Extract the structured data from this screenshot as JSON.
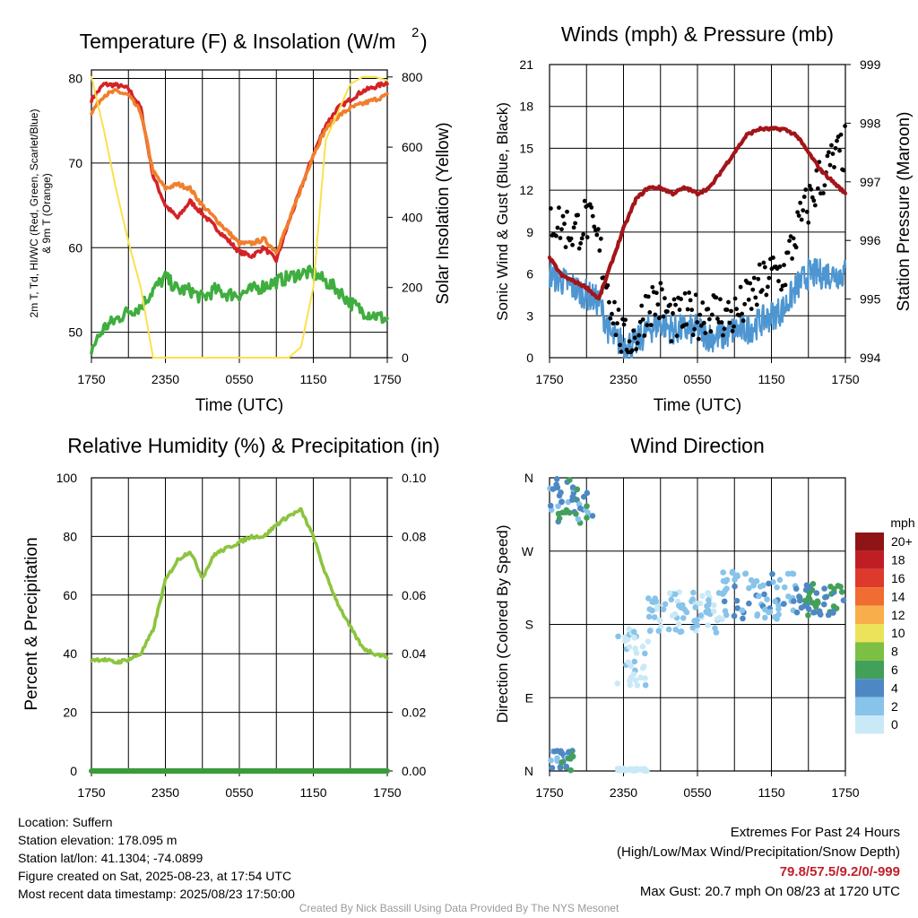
{
  "colors": {
    "red": "#d42226",
    "orange": "#f07f2d",
    "green": "#3fae3f",
    "yellow": "#fbe14a",
    "blue": "#4e96d1",
    "black": "#000000",
    "maroon": "#a3151a",
    "rh": "#8cc43f",
    "precip": "#3a9b3a"
  },
  "speed_legend": {
    "unit": "mph",
    "labels": [
      "0",
      "2",
      "4",
      "6",
      "8",
      "10",
      "12",
      "14",
      "16",
      "18",
      "20+"
    ],
    "colors": [
      "#c9e9f7",
      "#88c3ea",
      "#4e88c4",
      "#43a05a",
      "#7cbf42",
      "#ece35a",
      "#f8ae4a",
      "#ef6d31",
      "#de3a2c",
      "#be1e24",
      "#8e1416"
    ]
  },
  "x_ticks": [
    "1750",
    "2350",
    "0550",
    "1150",
    "1750"
  ],
  "chart_data": [
    {
      "type": "line",
      "title": "Temperature (F) & Insolation (W/m²)",
      "xlabel": "Time (UTC)",
      "ylabel_left": "2m T, Td, HI/WC (Red, Green, Scarlet/Blue) & 9m T (Orange)",
      "ylabel_right": "Solar Insolation (Yellow)",
      "ylim_left": [
        47,
        81
      ],
      "yticks_left": [
        50,
        60,
        70,
        80
      ],
      "ylim_right": [
        0,
        820
      ],
      "yticks_right": [
        0,
        200,
        400,
        600,
        800
      ],
      "x_hours": [
        0,
        1,
        2,
        3,
        4,
        5,
        6,
        7,
        8,
        9,
        10,
        11,
        12,
        13,
        14,
        15,
        16,
        17,
        18,
        19,
        20,
        21,
        22,
        23,
        24
      ],
      "series": [
        {
          "name": "2m T (Red)",
          "color": "red",
          "axis": "left",
          "values": [
            77.5,
            79.3,
            79.2,
            78.8,
            76.5,
            68.5,
            65,
            63.5,
            65.5,
            64,
            62.5,
            61,
            59.5,
            59,
            60,
            58.5,
            63,
            67,
            71,
            74.5,
            76.5,
            77.5,
            78.5,
            79,
            79.5
          ]
        },
        {
          "name": "9m T (Orange)",
          "color": "orange",
          "axis": "left",
          "values": [
            76,
            78,
            78.5,
            78,
            76,
            69,
            67,
            67.5,
            67,
            65,
            63.5,
            62,
            60.5,
            60.5,
            61,
            59.5,
            63,
            67,
            71,
            74,
            75.5,
            76.5,
            77,
            77.5,
            78
          ]
        },
        {
          "name": "Td (Green)",
          "color": "green",
          "axis": "left",
          "values": [
            48,
            50.5,
            51.5,
            52.5,
            53,
            55,
            56.5,
            55,
            55,
            54,
            55,
            54.5,
            54.5,
            55,
            55.5,
            56,
            56.5,
            57,
            57,
            56,
            55,
            53.5,
            52.5,
            52,
            51.5
          ]
        },
        {
          "name": "Solar Insolation (Yellow)",
          "color": "yellow",
          "axis": "right",
          "values": [
            800,
            650,
            480,
            330,
            200,
            0,
            0,
            0,
            0,
            0,
            0,
            0,
            0,
            0,
            0,
            0,
            0,
            30,
            200,
            620,
            700,
            780,
            800,
            800,
            790
          ]
        }
      ]
    },
    {
      "type": "scatter",
      "title": "Winds (mph) & Pressure (mb)",
      "xlabel": "Time (UTC)",
      "ylabel_left": "Sonic Wind & Gust (Blue, Black)",
      "ylabel_right": "Station Pressure (Maroon)",
      "ylim_left": [
        0,
        21
      ],
      "yticks_left": [
        0,
        3,
        6,
        9,
        12,
        15,
        18,
        21
      ],
      "ylim_right": [
        994,
        999
      ],
      "yticks_right": [
        994,
        995,
        996,
        997,
        998,
        999
      ],
      "x_hours": [
        0,
        1,
        2,
        3,
        4,
        5,
        6,
        7,
        8,
        9,
        10,
        11,
        12,
        13,
        14,
        15,
        16,
        17,
        18,
        19,
        20,
        21,
        22,
        23,
        24
      ],
      "series": [
        {
          "name": "Sonic Wind (Blue)",
          "color": "blue",
          "values": [
            6,
            5.5,
            5,
            4.5,
            4,
            1.5,
            1,
            1,
            2,
            2.5,
            2,
            2,
            2,
            1.5,
            1.5,
            2,
            2,
            2.5,
            3,
            3.5,
            5,
            6,
            6,
            6,
            6
          ]
        },
        {
          "name": "Gust (Black)",
          "color": "black",
          "values": [
            10,
            9.5,
            9,
            10,
            8,
            4,
            1,
            1.5,
            4,
            4,
            2.5,
            3,
            3,
            3.5,
            3,
            3,
            4,
            5,
            6,
            6,
            9,
            11,
            13,
            14,
            15
          ]
        },
        {
          "name": "Station Pressure (Maroon)",
          "color": "maroon",
          "values": [
            995.7,
            995.4,
            995.3,
            995.2,
            995.0,
            995.6,
            996.2,
            996.7,
            996.9,
            996.9,
            996.8,
            996.9,
            996.8,
            996.9,
            997.2,
            997.5,
            997.8,
            997.9,
            997.9,
            997.9,
            997.8,
            997.5,
            997.2,
            997.0,
            996.8
          ]
        }
      ]
    },
    {
      "type": "line",
      "title": "Relative Humidity (%) & Precipitation (in)",
      "ylabel_left": "Percent & Precipitation",
      "ylim_left": [
        0,
        100
      ],
      "yticks_left": [
        0,
        20,
        40,
        60,
        80,
        100
      ],
      "ylim_right": [
        0,
        0.1
      ],
      "yticks_right": [
        "0.00",
        "0.02",
        "0.04",
        "0.06",
        "0.08",
        "0.10"
      ],
      "x_hours": [
        0,
        1,
        2,
        3,
        4,
        5,
        6,
        7,
        8,
        9,
        10,
        11,
        12,
        13,
        14,
        15,
        16,
        17,
        18,
        19,
        20,
        21,
        22,
        23,
        24
      ],
      "series": [
        {
          "name": "Relative Humidity",
          "color": "rh",
          "values": [
            38,
            38,
            37,
            38,
            40,
            48,
            65,
            72,
            75,
            66,
            74,
            76,
            78,
            80,
            80,
            84,
            87,
            89,
            80,
            67,
            57,
            49,
            42,
            40,
            39
          ]
        },
        {
          "name": "Precipitation",
          "color": "precip",
          "values": [
            0,
            0,
            0,
            0,
            0,
            0,
            0,
            0,
            0,
            0,
            0,
            0,
            0,
            0,
            0,
            0,
            0,
            0,
            0,
            0,
            0,
            0,
            0,
            0,
            0
          ]
        }
      ]
    },
    {
      "type": "scatter",
      "title": "Wind Direction",
      "ylabel_left": "Direction (Colored By Speed)",
      "ylim_left": [
        0,
        360
      ],
      "yticks_left": [
        "N",
        "E",
        "S",
        "W",
        "N"
      ],
      "clusters": [
        {
          "hour_range": [
            0,
            3.5
          ],
          "dir_range": [
            300,
            360
          ],
          "speed_range": [
            3,
            8
          ]
        },
        {
          "hour_range": [
            0,
            2
          ],
          "dir_range": [
            0,
            25
          ],
          "speed_range": [
            3,
            7
          ]
        },
        {
          "hour_range": [
            5.5,
            8
          ],
          "dir_range": [
            105,
            175
          ],
          "speed_range": [
            0,
            3
          ]
        },
        {
          "hour_range": [
            8,
            14
          ],
          "dir_range": [
            170,
            220
          ],
          "speed_range": [
            1,
            4
          ]
        },
        {
          "hour_range": [
            14,
            20
          ],
          "dir_range": [
            185,
            245
          ],
          "speed_range": [
            2,
            5
          ]
        },
        {
          "hour_range": [
            20,
            24
          ],
          "dir_range": [
            190,
            230
          ],
          "speed_range": [
            4,
            8
          ]
        },
        {
          "hour_range": [
            5.5,
            8
          ],
          "dir_range": [
            0,
            3
          ],
          "speed_range": [
            0,
            1
          ]
        }
      ]
    }
  ],
  "footer": {
    "location": "Location: Suffern",
    "elevation": "Station elevation: 178.095 m",
    "latlon": "Station lat/lon: 41.1304; -74.0899",
    "created": "Figure created on Sat, 2025-08-23, at 17:54 UTC",
    "recent": "Most recent data timestamp: 2025/08/23 17:50:00",
    "extremes_title": "Extremes For Past 24 Hours",
    "extremes_sub": "(High/Low/Max Wind/Precipitation/Snow Depth)",
    "extremes_values": "79.8/57.5/9.2/0/-999",
    "max_gust": "Max Gust: 20.7 mph On 08/23 at 1720 UTC",
    "credit": "Created By Nick Bassill Using Data Provided By The NYS Mesonet"
  }
}
